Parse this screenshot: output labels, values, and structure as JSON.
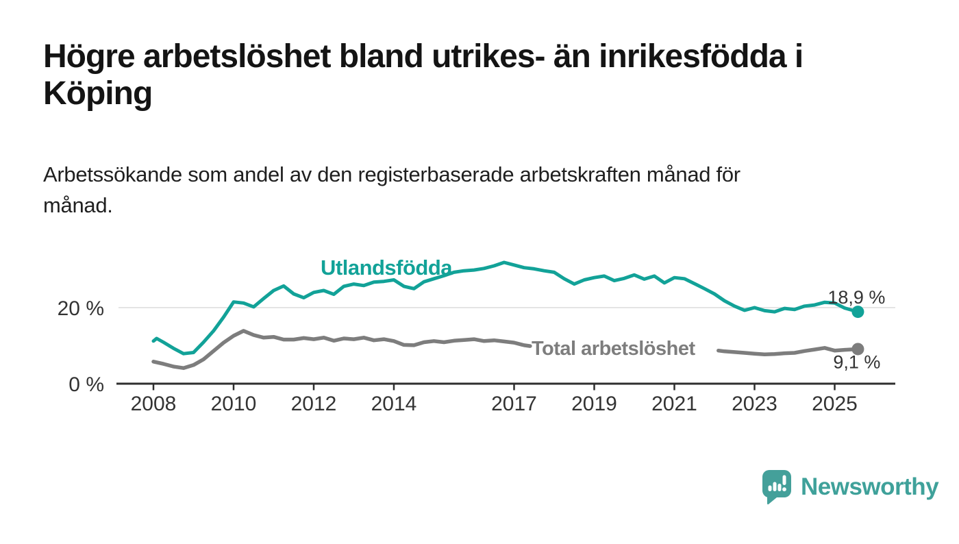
{
  "title": {
    "line1": "Högre arbetslöshet bland utrikes- än inrikesfödda i",
    "line2": "Köping"
  },
  "subtitle": {
    "line1": "Arbetssökande som andel av den registerbaserade arbetskraften månad för",
    "line2": "månad."
  },
  "chart_data": {
    "type": "line",
    "title": "Högre arbetslöshet bland utrikes- än inrikesfödda i Köping",
    "subtitle": "Arbetssökande som andel av den registerbaserade arbetskraften månad för månad.",
    "x_unit": "year",
    "x_range": [
      2008,
      2025.58
    ],
    "ylim": [
      0,
      33
    ],
    "grid": "single horizontal gridline at 20 %",
    "legend": "inline series labels next to lines",
    "axis_color": "#2e2e2e",
    "gridline_color": "#dcdcdc",
    "tick_label_color": "#333333",
    "x_ticks": [
      {
        "year": 2008,
        "label": "2008"
      },
      {
        "year": 2010,
        "label": "2010"
      },
      {
        "year": 2012,
        "label": "2012"
      },
      {
        "year": 2014,
        "label": "2014"
      },
      {
        "year": 2017,
        "label": "2017"
      },
      {
        "year": 2019,
        "label": "2019"
      },
      {
        "year": 2021,
        "label": "2021"
      },
      {
        "year": 2023,
        "label": "2023"
      },
      {
        "year": 2025,
        "label": "2025"
      }
    ],
    "y_ticks": [
      {
        "value": 0,
        "label": "0 %",
        "gridline": false
      },
      {
        "value": 20,
        "label": "20 %",
        "gridline": true
      }
    ],
    "series": [
      {
        "name": "Utlandsfödda",
        "color": "#12a298",
        "end_label": "18,9 %",
        "end_value": 18.9,
        "points": [
          [
            2008,
            11.2
          ],
          [
            2008.08,
            11.9
          ],
          [
            2008.25,
            10.9
          ],
          [
            2008.5,
            9.3
          ],
          [
            2008.75,
            7.9
          ],
          [
            2009,
            8.2
          ],
          [
            2009.25,
            10.9
          ],
          [
            2009.5,
            13.9
          ],
          [
            2009.75,
            17.5
          ],
          [
            2010,
            21.5
          ],
          [
            2010.25,
            21.2
          ],
          [
            2010.5,
            20.2
          ],
          [
            2010.75,
            22.4
          ],
          [
            2011,
            24.5
          ],
          [
            2011.25,
            25.7
          ],
          [
            2011.5,
            23.6
          ],
          [
            2011.75,
            22.6
          ],
          [
            2012,
            24.0
          ],
          [
            2012.25,
            24.5
          ],
          [
            2012.5,
            23.5
          ],
          [
            2012.75,
            25.6
          ],
          [
            2013,
            26.2
          ],
          [
            2013.25,
            25.8
          ],
          [
            2013.5,
            26.7
          ],
          [
            2013.75,
            26.9
          ],
          [
            2014,
            27.3
          ],
          [
            2014.25,
            25.6
          ],
          [
            2014.5,
            25.0
          ],
          [
            2014.75,
            26.8
          ],
          [
            2015,
            27.6
          ],
          [
            2015.25,
            28.4
          ],
          [
            2015.5,
            29.3
          ],
          [
            2015.75,
            29.7
          ],
          [
            2016,
            29.9
          ],
          [
            2016.25,
            30.3
          ],
          [
            2016.5,
            31.0
          ],
          [
            2016.75,
            31.9
          ],
          [
            2017,
            31.2
          ],
          [
            2017.25,
            30.5
          ],
          [
            2017.5,
            30.2
          ],
          [
            2017.75,
            29.7
          ],
          [
            2018,
            29.3
          ],
          [
            2018.25,
            27.6
          ],
          [
            2018.5,
            26.2
          ],
          [
            2018.75,
            27.3
          ],
          [
            2019,
            27.9
          ],
          [
            2019.25,
            28.3
          ],
          [
            2019.5,
            27.1
          ],
          [
            2019.75,
            27.7
          ],
          [
            2020,
            28.6
          ],
          [
            2020.25,
            27.5
          ],
          [
            2020.5,
            28.3
          ],
          [
            2020.75,
            26.5
          ],
          [
            2021,
            27.9
          ],
          [
            2021.25,
            27.6
          ],
          [
            2021.5,
            26.3
          ],
          [
            2021.75,
            25.0
          ],
          [
            2022,
            23.6
          ],
          [
            2022.25,
            21.8
          ],
          [
            2022.5,
            20.4
          ],
          [
            2022.75,
            19.3
          ],
          [
            2023,
            20.0
          ],
          [
            2023.25,
            19.2
          ],
          [
            2023.5,
            18.9
          ],
          [
            2023.75,
            19.8
          ],
          [
            2024,
            19.5
          ],
          [
            2024.25,
            20.4
          ],
          [
            2024.5,
            20.7
          ],
          [
            2024.75,
            21.4
          ],
          [
            2025,
            21.2
          ],
          [
            2025.25,
            19.9
          ],
          [
            2025.58,
            18.9
          ]
        ]
      },
      {
        "name": "Total arbetslöshet",
        "color": "#7d7d7d",
        "end_label": "9,1 %",
        "end_value": 9.1,
        "note": "line hidden behind inline label between 2017.4 and 2022.1",
        "segments": [
          [
            [
              2008,
              5.8
            ],
            [
              2008.25,
              5.2
            ],
            [
              2008.5,
              4.5
            ],
            [
              2008.75,
              4.1
            ],
            [
              2009,
              4.9
            ],
            [
              2009.25,
              6.4
            ],
            [
              2009.5,
              8.6
            ],
            [
              2009.75,
              10.8
            ],
            [
              2010,
              12.6
            ],
            [
              2010.25,
              13.9
            ],
            [
              2010.5,
              12.8
            ],
            [
              2010.75,
              12.1
            ],
            [
              2011,
              12.3
            ],
            [
              2011.25,
              11.6
            ],
            [
              2011.5,
              11.6
            ],
            [
              2011.75,
              12.0
            ],
            [
              2012,
              11.7
            ],
            [
              2012.25,
              12.1
            ],
            [
              2012.5,
              11.3
            ],
            [
              2012.75,
              11.9
            ],
            [
              2013,
              11.7
            ],
            [
              2013.25,
              12.1
            ],
            [
              2013.5,
              11.4
            ],
            [
              2013.75,
              11.7
            ],
            [
              2014,
              11.2
            ],
            [
              2014.25,
              10.2
            ],
            [
              2014.5,
              10.1
            ],
            [
              2014.75,
              10.9
            ],
            [
              2015,
              11.2
            ],
            [
              2015.25,
              10.9
            ],
            [
              2015.5,
              11.3
            ],
            [
              2015.75,
              11.5
            ],
            [
              2016,
              11.7
            ],
            [
              2016.25,
              11.2
            ],
            [
              2016.5,
              11.4
            ],
            [
              2016.75,
              11.1
            ],
            [
              2017,
              10.8
            ],
            [
              2017.25,
              10.1
            ],
            [
              2017.4,
              9.9
            ]
          ],
          [
            [
              2022.1,
              8.7
            ],
            [
              2022.25,
              8.5
            ],
            [
              2022.5,
              8.3
            ],
            [
              2022.75,
              8.1
            ],
            [
              2023,
              7.9
            ],
            [
              2023.25,
              7.7
            ],
            [
              2023.5,
              7.8
            ],
            [
              2023.75,
              8.0
            ],
            [
              2024,
              8.1
            ],
            [
              2024.25,
              8.6
            ],
            [
              2024.5,
              9.0
            ],
            [
              2024.75,
              9.4
            ],
            [
              2025,
              8.7
            ],
            [
              2025.25,
              8.9
            ],
            [
              2025.58,
              9.1
            ]
          ]
        ]
      }
    ]
  },
  "logo": {
    "text": "Newsworthy",
    "text_color": "#3fa19a",
    "mark_color": "#44a09a",
    "mark": "speech-bubble-bar-chart"
  }
}
